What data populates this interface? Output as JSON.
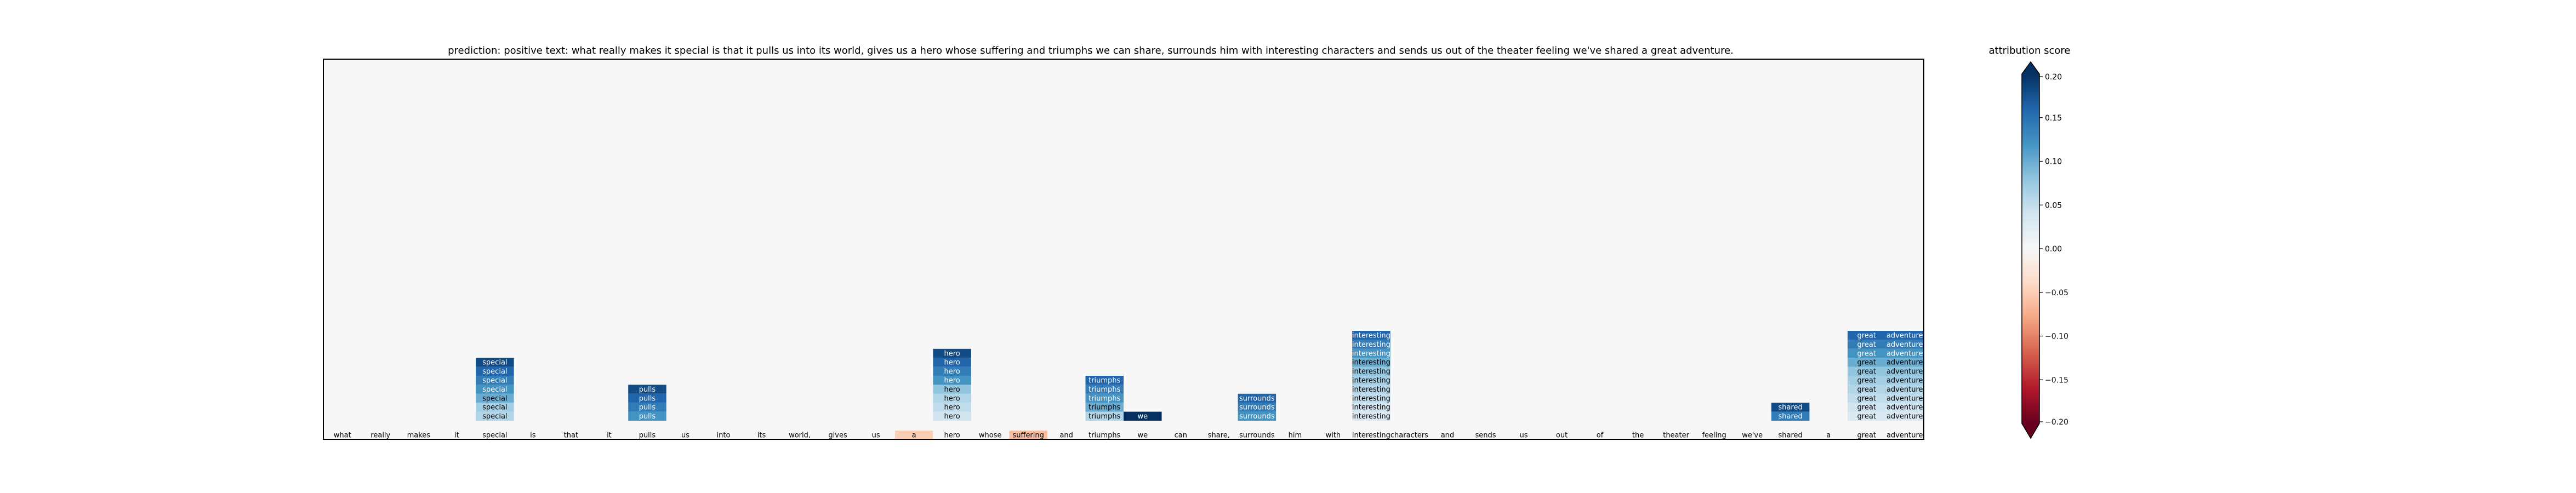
{
  "chart_data": {
    "type": "heatmap",
    "title": "prediction:  positive     text:  what really makes it special is that it pulls us into its world, gives us a hero whose suffering and triumphs we can share, surrounds him with interesting characters and sends us out of the theater feeling we've shared a great adventure.",
    "colorbar": {
      "label": "attribution score",
      "range": [
        -0.2,
        0.2
      ],
      "ticks": [
        "0.20",
        "0.15",
        "0.10",
        "0.05",
        "0.00",
        "−0.05",
        "−0.10",
        "−0.15",
        "−0.20"
      ],
      "tick_values": [
        0.2,
        0.15,
        0.1,
        0.05,
        0.0,
        -0.05,
        -0.1,
        -0.15,
        -0.2
      ],
      "colormap": "RdBu",
      "extend": "both"
    },
    "tokens": [
      "what",
      "really",
      "makes",
      "it",
      "special",
      "is",
      "that",
      "it",
      "pulls",
      "us",
      "into",
      "its",
      "world,",
      "gives",
      "us",
      "a",
      "hero",
      "whose",
      "suffering",
      "and",
      "triumphs",
      "we",
      "can",
      "share,",
      "surrounds",
      "him",
      "with",
      "interesting",
      "characters",
      "and",
      "sends",
      "us",
      "out",
      "of",
      "the",
      "theater",
      "feeling",
      "we've",
      "shared",
      "a",
      "great",
      "adventure"
    ],
    "bottom_row_scores": [
      0.0,
      0.0,
      0.0,
      0.0,
      0.0,
      0.0,
      0.0,
      0.0,
      0.0,
      0.0,
      0.0,
      0.0,
      0.0,
      0.0,
      0.0,
      -0.05,
      0.0,
      0.0,
      -0.06,
      0.0,
      0.0,
      0.0,
      0.0,
      0.0,
      0.0,
      0.0,
      0.0,
      0.0,
      0.0,
      0.0,
      0.0,
      0.0,
      0.0,
      0.0,
      0.0,
      0.0,
      0.0,
      0.0,
      0.0,
      0.0,
      0.0,
      0.0
    ],
    "stacks": [
      {
        "token": "special",
        "column": 4,
        "scores": [
          0.06,
          0.07,
          0.1,
          0.12,
          0.14,
          0.16,
          0.18
        ]
      },
      {
        "token": "pulls",
        "column": 8,
        "scores": [
          0.12,
          0.14,
          0.16,
          0.18
        ]
      },
      {
        "token": "hero",
        "column": 16,
        "scores": [
          0.04,
          0.05,
          0.06,
          0.08,
          0.12,
          0.14,
          0.16,
          0.18
        ]
      },
      {
        "token": "triumphs",
        "column": 20,
        "scores": [
          0.06,
          0.1,
          0.12,
          0.14,
          0.16
        ]
      },
      {
        "token": "we",
        "column": 21,
        "scores": [
          0.2
        ]
      },
      {
        "token": "surrounds",
        "column": 24,
        "scores": [
          0.12,
          0.14,
          0.16
        ]
      },
      {
        "token": "interesting",
        "column": 27,
        "scores": [
          0.03,
          0.04,
          0.05,
          0.06,
          0.07,
          0.08,
          0.1,
          0.12,
          0.14,
          0.16
        ]
      },
      {
        "token": "shared",
        "column": 38,
        "scores": [
          0.14,
          0.18
        ]
      },
      {
        "token": "great",
        "column": 40,
        "scores": [
          0.03,
          0.04,
          0.05,
          0.06,
          0.07,
          0.08,
          0.1,
          0.12,
          0.14,
          0.16
        ]
      },
      {
        "token": "adventure",
        "column": 41,
        "scores": [
          0.03,
          0.04,
          0.05,
          0.06,
          0.07,
          0.08,
          0.1,
          0.12,
          0.14,
          0.16
        ]
      }
    ]
  }
}
